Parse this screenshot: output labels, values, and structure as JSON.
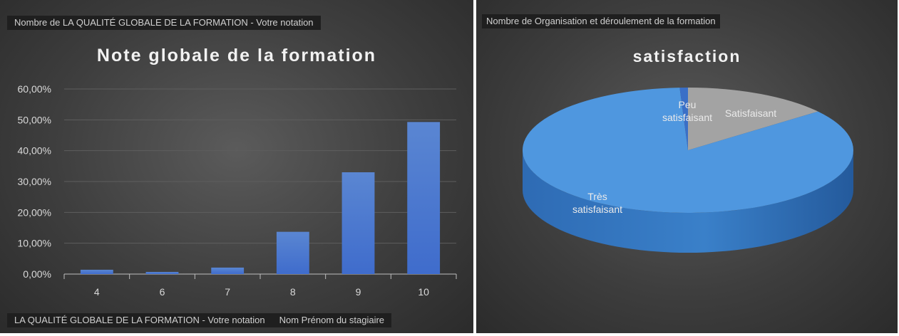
{
  "left": {
    "field_button": "Nombre de LA QUALITÉ GLOBALE DE LA FORMATION - Votre notation",
    "axis_field_buttons": [
      "LA QUALITÉ GLOBALE DE LA FORMATION - Votre notation",
      "Nom Prénom du stagiaire"
    ]
  },
  "right": {
    "field_button": "Nombre de Organisation et déroulement de la formation"
  },
  "chart_data": [
    {
      "type": "bar",
      "title": "Note globale de la formation",
      "categories": [
        "4",
        "6",
        "7",
        "8",
        "9",
        "10"
      ],
      "values": [
        1.4,
        0.7,
        2.1,
        13.7,
        33.0,
        49.3
      ],
      "ylim": [
        0,
        60
      ],
      "yticks": [
        "0,00%",
        "10,00%",
        "20,00%",
        "30,00%",
        "40,00%",
        "50,00%",
        "60,00%"
      ],
      "grid": true,
      "legend": "none",
      "colors": {
        "bar": "#4e7fd6",
        "text": "#d9d9d9",
        "grid": "#5e5e5e"
      }
    },
    {
      "type": "pie",
      "title": "satisfaction",
      "labels": [
        "Satisfaisant",
        "Très satisfaisant",
        "Peu satisfaisant"
      ],
      "values": [
        14.4,
        84.8,
        0.8
      ],
      "colors": [
        "#a3a3a3",
        "#4f97df",
        "#3a6fc7"
      ],
      "legend": "none"
    }
  ]
}
